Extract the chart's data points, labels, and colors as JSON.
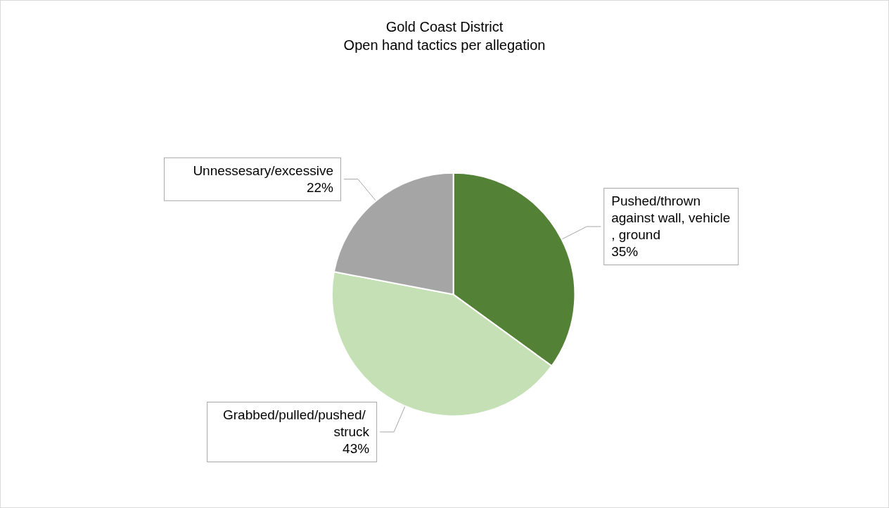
{
  "chart_data": {
    "type": "pie",
    "title": "Gold Coast District",
    "subtitle": "Open hand tactics per allegation",
    "categories": [
      "Pushed/thrown against wall, vehicle, ground",
      "Grabbed/pulled/pushed/ struck",
      "Unnessesary/excessive"
    ],
    "values": [
      35,
      43,
      22
    ],
    "value_labels": [
      "35%",
      "43%",
      "22%"
    ],
    "colors": [
      "#538135",
      "#c5e0b4",
      "#a5a5a5"
    ],
    "legend": false
  }
}
